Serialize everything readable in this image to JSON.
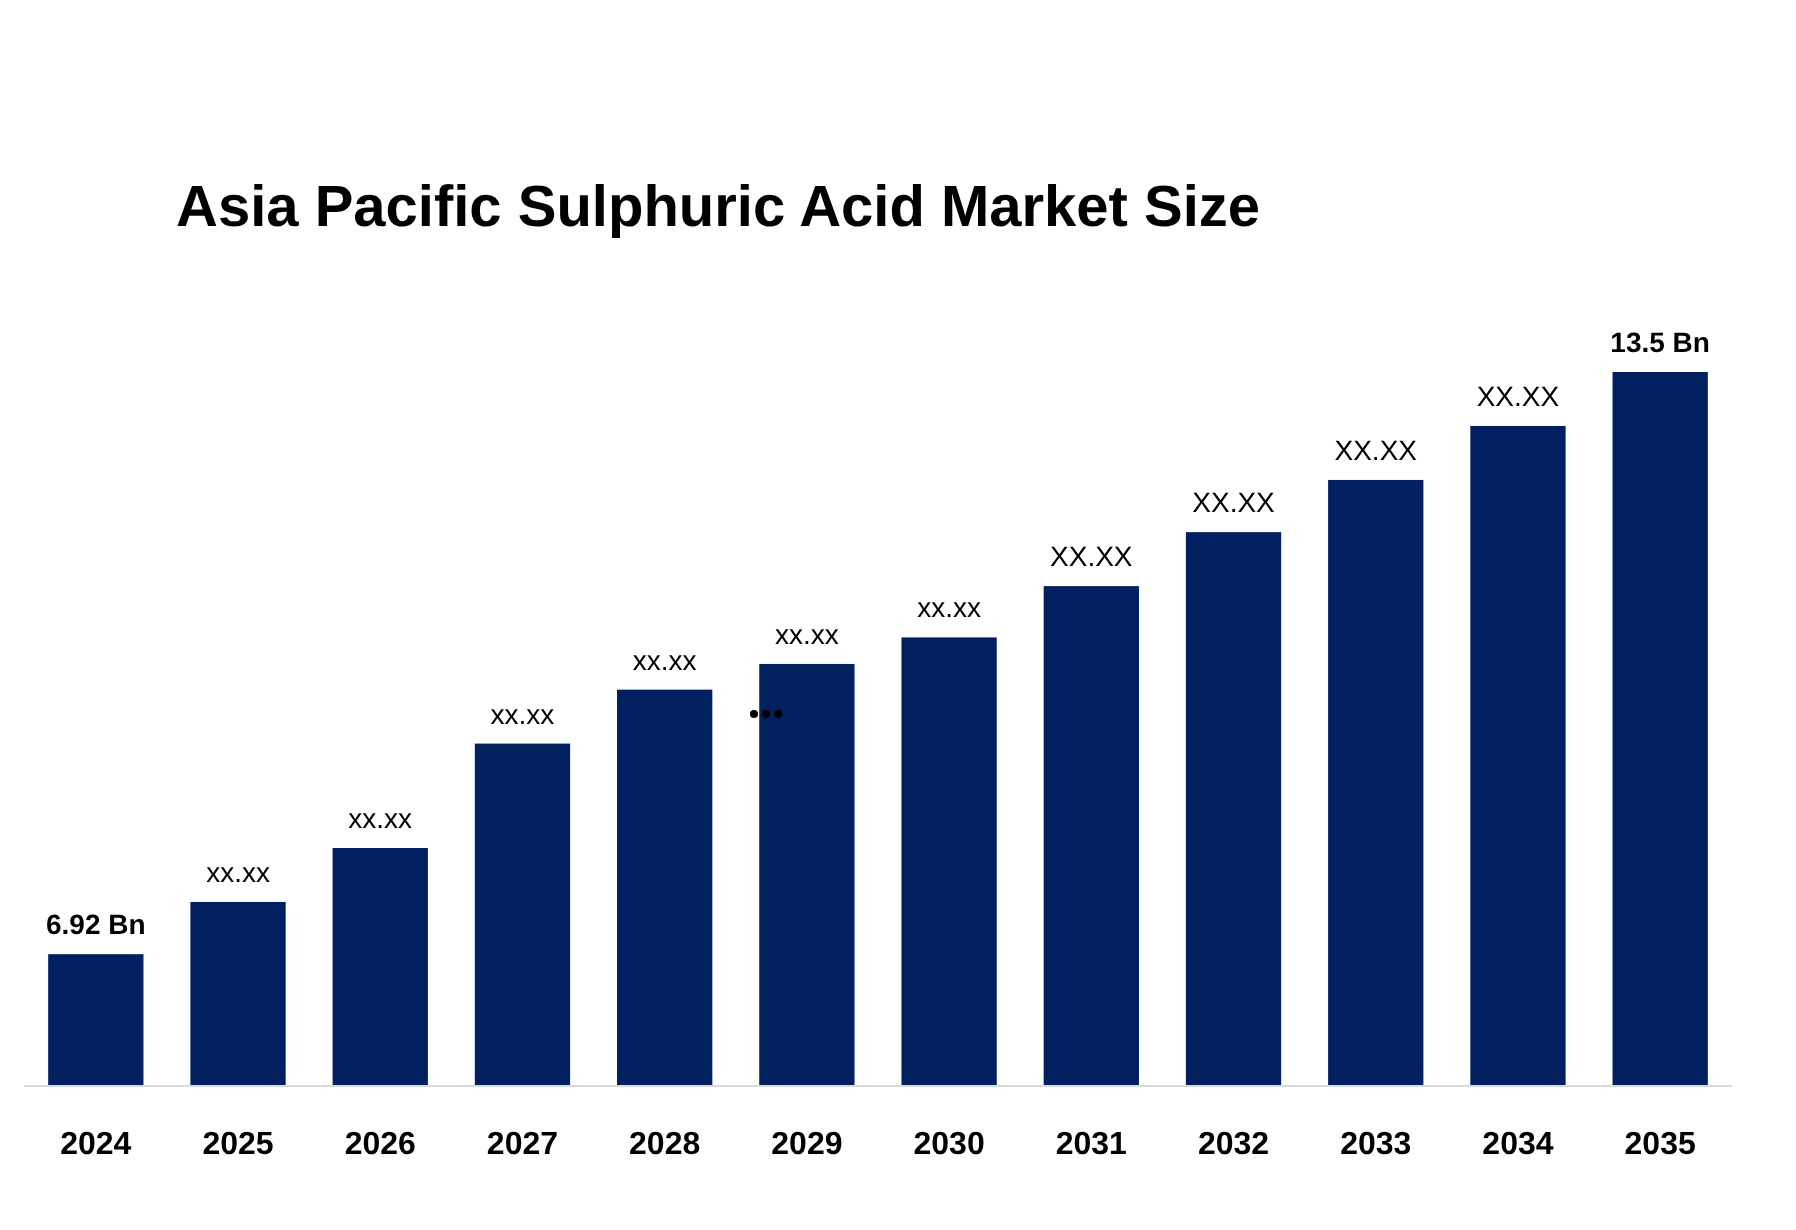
{
  "chart_data": {
    "type": "bar",
    "title": "Asia Pacific Sulphuric Acid Market Size",
    "categories": [
      "2024",
      "2025",
      "2026",
      "2027",
      "2028",
      "2029",
      "2030",
      "2031",
      "2032",
      "2033",
      "2034",
      "2035"
    ],
    "values": [
      6.92,
      7.51,
      8.12,
      9.3,
      9.91,
      10.2,
      10.5,
      11.08,
      11.69,
      12.28,
      12.89,
      13.5
    ],
    "value_labels": [
      "6.92 Bn",
      "xx.xx",
      "xx.xx",
      "xx.xx",
      "xx.xx",
      "xx.xx",
      "xx.xx",
      "XX.XX",
      "XX.XX",
      "XX.XX",
      "XX.XX",
      "13.5 Bn"
    ],
    "color": "#002060",
    "ylim": [
      5.43,
      13.5
    ],
    "tick_labels": "x"
  }
}
